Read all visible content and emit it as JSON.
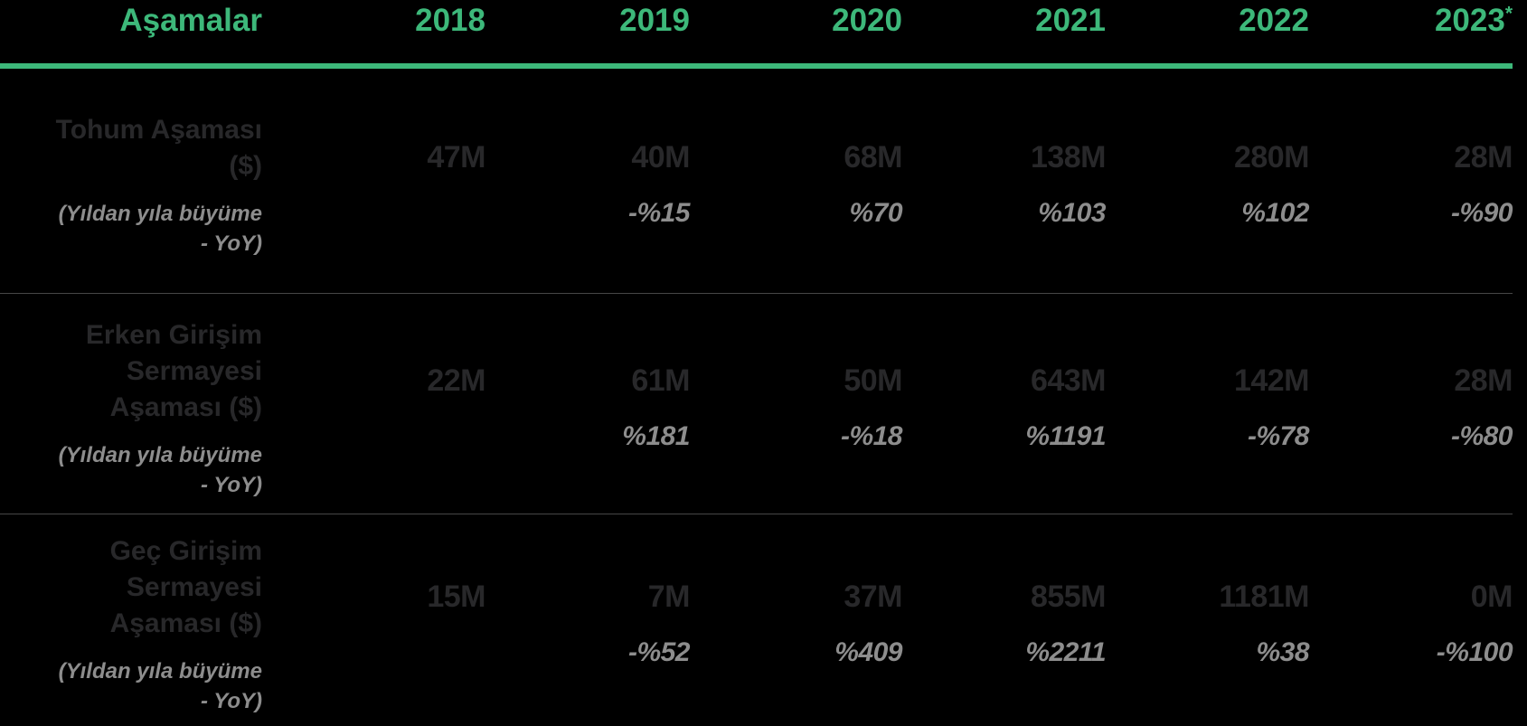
{
  "colors": {
    "bg": "#000000",
    "green": "#3db87a",
    "dark": "#28282a",
    "gray": "#8d8d8d",
    "divider": "rgba(255,255,255,0.28)"
  },
  "table": {
    "stage_header": "Aşamalar",
    "years": [
      {
        "label": "2018",
        "marker": ""
      },
      {
        "label": "2019",
        "marker": ""
      },
      {
        "label": "2020",
        "marker": ""
      },
      {
        "label": "2021",
        "marker": ""
      },
      {
        "label": "2022",
        "marker": ""
      },
      {
        "label": "2023",
        "marker": "*"
      }
    ],
    "rows": [
      {
        "label_lines": [
          "Tohum Aşaması",
          "($)"
        ],
        "sublabel_lines": [
          "(Yıldan yıla büyüme",
          "- YoY)"
        ],
        "values": [
          "47M",
          "40M",
          "68M",
          "138M",
          "280M",
          "28M"
        ],
        "yoy": [
          "",
          "-%15",
          "%70",
          "%103",
          "%102",
          "-%90"
        ]
      },
      {
        "label_lines": [
          "Erken Girişim",
          "Sermayesi",
          "Aşaması ($)"
        ],
        "sublabel_lines": [
          "(Yıldan yıla büyüme",
          "- YoY)"
        ],
        "values": [
          "22M",
          "61M",
          "50M",
          "643M",
          "142M",
          "28M"
        ],
        "yoy": [
          "",
          "%181",
          "-%18",
          "%1191",
          "-%78",
          "-%80"
        ]
      },
      {
        "label_lines": [
          "Geç Girişim",
          "Sermayesi",
          "Aşaması ($)"
        ],
        "sublabel_lines": [
          "(Yıldan yıla büyüme",
          "- YoY)"
        ],
        "values": [
          "15M",
          "7M",
          "37M",
          "855M",
          "1181M",
          "0M"
        ],
        "yoy": [
          "",
          "-%52",
          "%409",
          "%2211",
          "%38",
          "-%100"
        ]
      }
    ]
  },
  "chart_data": {
    "type": "table",
    "title": "Aşamalar",
    "columns": [
      "Aşamalar",
      "2018",
      "2019",
      "2020",
      "2021",
      "2022",
      "2023*"
    ],
    "unit": "M USD",
    "rows": [
      {
        "stage": "Tohum Aşaması ($)",
        "note": "(Yıldan yıla büyüme - YoY)",
        "values_musd": [
          47,
          40,
          68,
          138,
          280,
          28
        ],
        "yoy_percent": [
          null,
          -15,
          70,
          103,
          102,
          -90
        ]
      },
      {
        "stage": "Erken Girişim Sermayesi Aşaması ($)",
        "note": "(Yıldan yıla büyüme - YoY)",
        "values_musd": [
          22,
          61,
          50,
          643,
          142,
          28
        ],
        "yoy_percent": [
          null,
          181,
          -18,
          1191,
          -78,
          -80
        ]
      },
      {
        "stage": "Geç Girişim Sermayesi Aşaması ($)",
        "note": "(Yıldan yıla büyüme - YoY)",
        "values_musd": [
          15,
          7,
          37,
          855,
          1181,
          0
        ],
        "yoy_percent": [
          null,
          -52,
          409,
          2211,
          38,
          -100
        ]
      }
    ]
  }
}
